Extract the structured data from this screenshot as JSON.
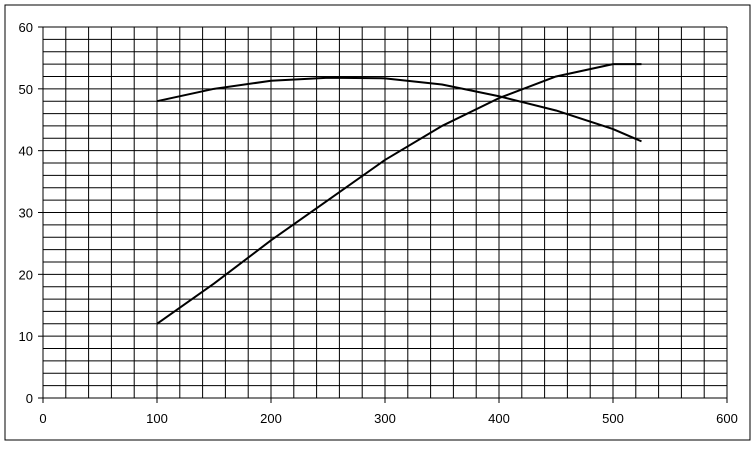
{
  "chart_data": {
    "type": "line",
    "x": [
      100,
      150,
      200,
      250,
      300,
      350,
      400,
      450,
      500,
      525
    ],
    "series": [
      {
        "color": "#000000",
        "values": [
          12,
          18.5,
          25.5,
          32,
          38.5,
          44,
          48.5,
          52,
          54,
          54
        ]
      },
      {
        "color": "#000000",
        "values": [
          48,
          50,
          51.3,
          51.8,
          51.7,
          50.7,
          48.8,
          46.5,
          43.5,
          41.5
        ]
      }
    ],
    "xlim": [
      0,
      600
    ],
    "xticks": [
      0,
      100,
      200,
      300,
      400,
      500,
      600
    ],
    "ylim": [
      0,
      60
    ],
    "yticks": [
      0,
      10,
      20,
      30,
      40,
      50,
      60
    ],
    "grid": true,
    "grid_minor": {
      "x": 20,
      "y": 2
    }
  }
}
